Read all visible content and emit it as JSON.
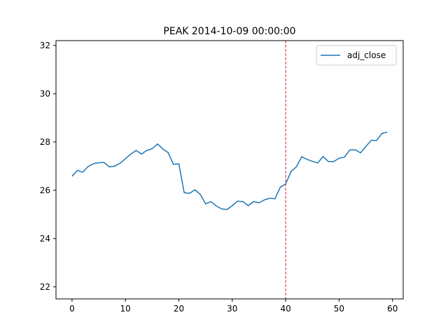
{
  "chart_data": {
    "type": "line",
    "title": "PEAK 2014-10-09 00:00:00",
    "xlabel": "",
    "ylabel": "",
    "xlim": [
      -3,
      62
    ],
    "ylim": [
      21.5,
      32.2
    ],
    "xticks": [
      0,
      10,
      20,
      30,
      40,
      50,
      60
    ],
    "yticks": [
      22,
      24,
      26,
      28,
      30,
      32
    ],
    "grid": false,
    "legend": {
      "placement": "top-right",
      "entries": [
        "adj_close"
      ]
    },
    "vline": {
      "x": 40,
      "color": "#d62728",
      "style": "dashed"
    },
    "series": [
      {
        "name": "adj_close",
        "color": "#1f77b4",
        "x": [
          0,
          1,
          2,
          3,
          4,
          5,
          6,
          7,
          8,
          9,
          10,
          11,
          12,
          13,
          14,
          15,
          16,
          17,
          18,
          19,
          20,
          21,
          22,
          23,
          24,
          25,
          26,
          27,
          28,
          29,
          30,
          31,
          32,
          33,
          34,
          35,
          36,
          37,
          38,
          39,
          40,
          41,
          42,
          43,
          44,
          45,
          46,
          47,
          48,
          49,
          50,
          51,
          52,
          53,
          54,
          55,
          56,
          57,
          58,
          59
        ],
        "values": [
          26.58,
          26.82,
          26.75,
          26.98,
          27.1,
          27.14,
          27.15,
          26.97,
          27.0,
          27.12,
          27.31,
          27.5,
          27.65,
          27.5,
          27.65,
          27.72,
          27.92,
          27.71,
          27.56,
          27.07,
          27.1,
          25.9,
          25.87,
          26.02,
          25.83,
          25.44,
          25.53,
          25.35,
          25.23,
          25.2,
          25.36,
          25.55,
          25.53,
          25.36,
          25.53,
          25.48,
          25.6,
          25.67,
          25.65,
          26.13,
          26.26,
          26.78,
          26.97,
          27.39,
          27.28,
          27.2,
          27.13,
          27.4,
          27.19,
          27.19,
          27.33,
          27.37,
          27.67,
          27.68,
          27.55,
          27.81,
          28.07,
          28.06,
          28.35,
          28.41
        ]
      }
    ]
  }
}
